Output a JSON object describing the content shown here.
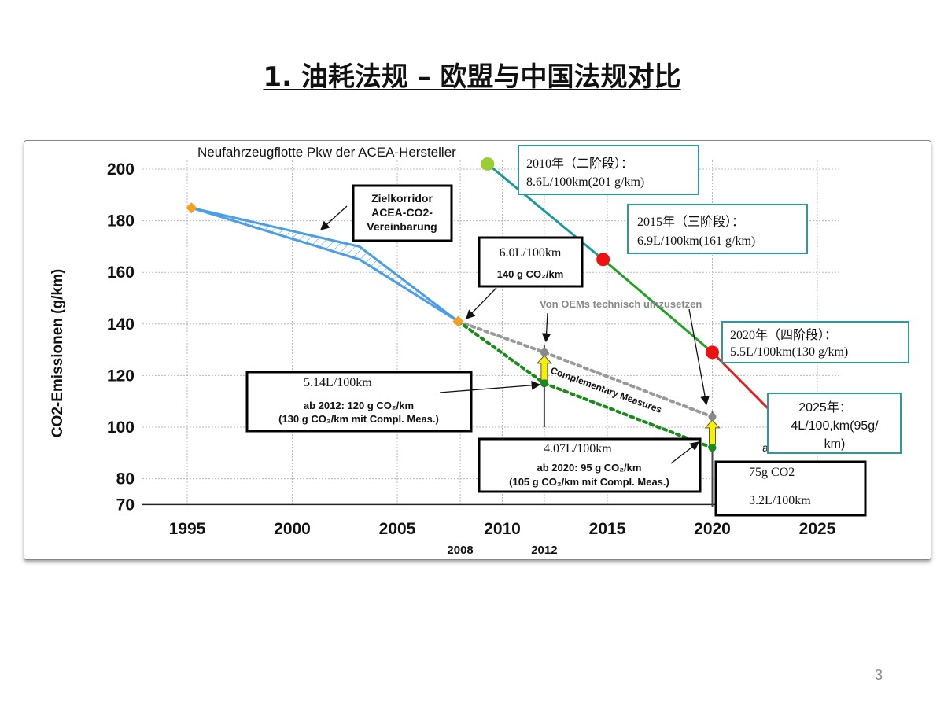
{
  "title": "1. 油耗法规 – 欧盟与中国法规对比",
  "page_number": "3",
  "chart_data": {
    "type": "line",
    "title": "Neufahrzeugflotte Pkw der ACEA-Hersteller",
    "ylabel": "CO2-Emissionen (g/km)",
    "xlabel": "",
    "xlim": [
      1993,
      2030
    ],
    "ylim": [
      70,
      200
    ],
    "x_ticks": [
      "1995",
      "2000",
      "2005",
      "2010",
      "2015",
      "2020",
      "2025"
    ],
    "x_extra_ticks": [
      "2008",
      "2012"
    ],
    "y_ticks": [
      "200",
      "180",
      "160",
      "140",
      "120",
      "100",
      "80",
      "70"
    ],
    "grid": true,
    "colors": {
      "eu_corridor": "#4a9ee8",
      "china_phase2": "#1a9a9a",
      "china_phase3": "#22a022",
      "china_phase4": "#e02020",
      "eu_oem_target": "#999999",
      "eu_complementary": "#1a8a1a",
      "marker_orange": "#f5a020",
      "arrow_yellow": "#f8f000"
    },
    "series": [
      {
        "name": "",
        "x": [
          1995.2,
          2003.2,
          2007.9
        ],
        "y": [
          185,
          170,
          141
        ]
      },
      {
        "name": "",
        "x": [
          1995.2,
          2003.2,
          2007.9
        ],
        "y": [
          185,
          165,
          141
        ]
      },
      {
        "name": "",
        "x": [
          2007.9,
          2012,
          2020
        ],
        "y": [
          141,
          129,
          104
        ]
      },
      {
        "name": "",
        "x": [
          2007.9,
          2012,
          2020
        ],
        "y": [
          141,
          117,
          92
        ]
      },
      {
        "name": "",
        "x": [
          2009.3,
          2014.8
        ],
        "y": [
          202,
          165
        ]
      },
      {
        "name": "",
        "x": [
          2014.8,
          2020
        ],
        "y": [
          165,
          129
        ]
      },
      {
        "name": "",
        "x": [
          2020,
          2022.8
        ],
        "y": [
          129,
          106
        ]
      }
    ],
    "points": [
      {
        "x": 1995.2,
        "y": 185,
        "color": "#f5a020",
        "shape": "diamond"
      },
      {
        "x": 2007.9,
        "y": 141,
        "color": "#f5a020",
        "shape": "diamond"
      },
      {
        "x": 2009.3,
        "y": 202,
        "color": "#9acd32",
        "shape": "circle"
      },
      {
        "x": 2014.8,
        "y": 165,
        "color": "#ee1111",
        "shape": "circle"
      },
      {
        "x": 2020,
        "y": 129,
        "color": "#ee1111",
        "shape": "circle"
      },
      {
        "x": 2012,
        "y": 129,
        "color": "#888888",
        "shape": "small"
      },
      {
        "x": 2012,
        "y": 117,
        "color": "#1a8a1a",
        "shape": "small"
      },
      {
        "x": 2020,
        "y": 104,
        "color": "#888888",
        "shape": "small"
      },
      {
        "x": 2020,
        "y": 92,
        "color": "#1a8a1a",
        "shape": "small"
      }
    ],
    "annotations": {
      "corridor": [
        "Zielkorridor",
        "ACEA-CO2-",
        "Vereinbarung"
      ],
      "target_2008_l": "6.0L/100km",
      "target_2008_g": "140 g CO₂/km",
      "oem_label": "Von OEMs technisch umzusetzen",
      "complementary_label": "Complementary Measures",
      "eu2012_l": "5.14L/100km",
      "eu2012_g": "ab 2012: 120 g CO₂/km",
      "eu2012_c": "(130 g CO₂/km mit Compl. Meas.)",
      "eu2020_l": "4.07L/100km",
      "eu2020_g": "ab 2020: 95 g CO₂/km",
      "eu2020_c": "(105 g CO₂/km mit Compl. Meas.)",
      "cn2010_a": "2010年（二阶段）：",
      "cn2010_b": "8.6L/100km(201 g/km)",
      "cn2015_a": "2015年（三阶段）：",
      "cn2015_b": "6.9L/100km(161 g/km)",
      "cn2020_a": "2020年（四阶段）：",
      "cn2020_b": "5.5L/100km(130 g/km)",
      "cn2025_a": "2025年：",
      "cn2025_b": "4L/100,km(95g/",
      "cn2025_c": "km)",
      "eu2025_a": "75g CO2",
      "eu2025_b": "3.2L/100km",
      "hidden_a": "a"
    }
  }
}
